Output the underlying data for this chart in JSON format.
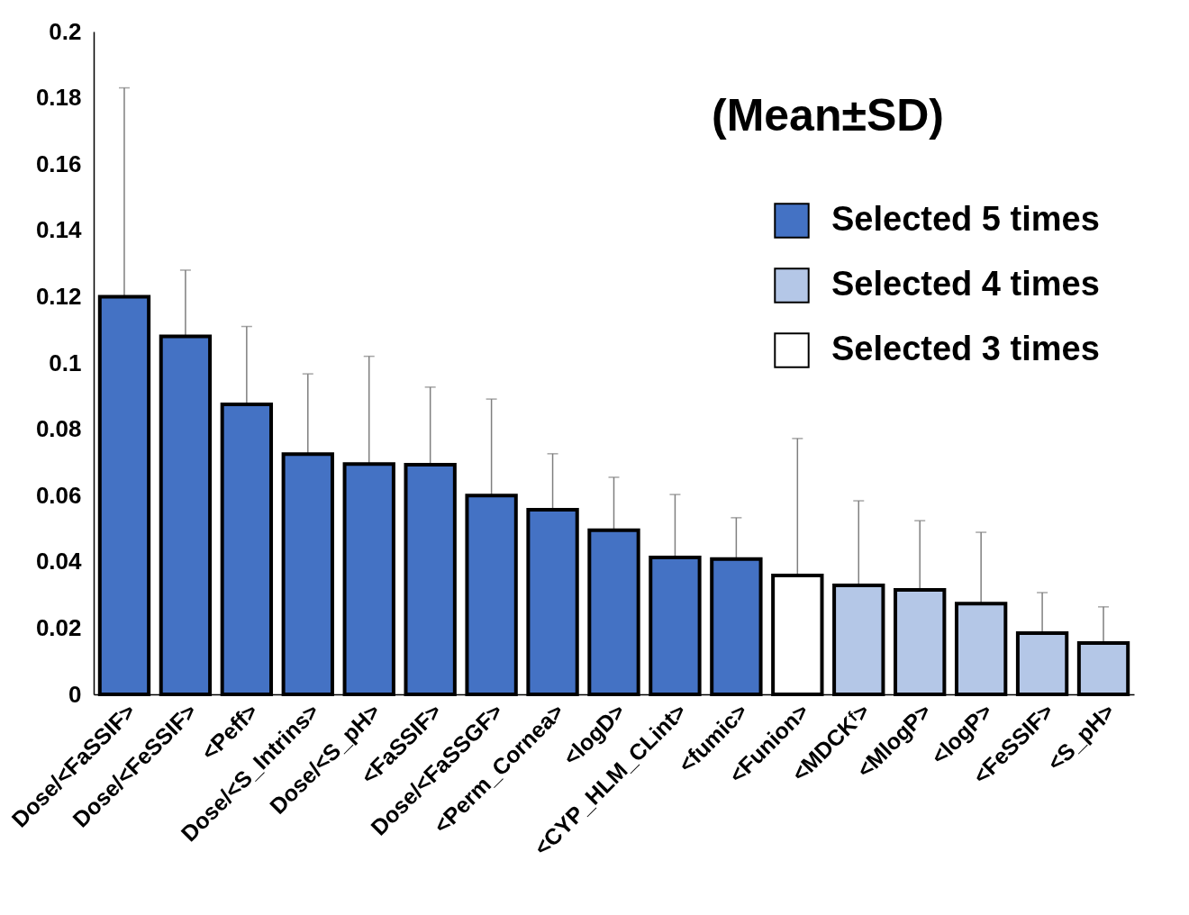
{
  "chart_data": {
    "type": "bar",
    "categories": [
      "Dose/<FaSSIF>",
      "Dose/<FeSSIF>",
      "<Peff>",
      "Dose/<S_Intrins>",
      "Dose/<S_pH>",
      "<FaSSIF>",
      "Dose/<FaSSGF>",
      "<Perm_Cornea>",
      "<logD>",
      "<CYP_HLM_CLint>",
      "<fumic>",
      "<Funion>",
      "<MDCKᶠ>",
      "<MlogP>",
      "<logP>",
      "<FeSSIF>",
      "<S_pH>"
    ],
    "series": [
      {
        "name": "Selected 5 times",
        "color": "#4472c4",
        "values": [
          0.12,
          0.108,
          0.0875,
          0.0725,
          0.0695,
          0.0693,
          0.06,
          0.0557,
          0.0495,
          0.0413,
          0.0408,
          null,
          null,
          null,
          null,
          null,
          null
        ],
        "errors": [
          [
            0.12,
            0.183
          ],
          [
            0.108,
            0.128
          ],
          [
            0.0875,
            0.111
          ],
          [
            0.0725,
            0.0967
          ],
          [
            0.0695,
            0.102
          ],
          [
            0.0693,
            0.0927
          ],
          [
            0.06,
            0.0891
          ],
          [
            0.0557,
            0.0726
          ],
          [
            0.0495,
            0.0655
          ],
          [
            0.0413,
            0.0603
          ],
          [
            0.0408,
            0.0533
          ],
          null,
          null,
          null,
          null,
          null,
          null
        ]
      },
      {
        "name": "Selected 4 times",
        "color": "#b4c7e7",
        "values": [
          null,
          null,
          null,
          null,
          null,
          null,
          null,
          null,
          null,
          null,
          null,
          null,
          0.0329,
          0.0315,
          0.0274,
          0.0185,
          0.0155
        ],
        "errors": [
          null,
          null,
          null,
          null,
          null,
          null,
          null,
          null,
          null,
          null,
          null,
          null,
          [
            0.0329,
            0.0584
          ],
          [
            0.0315,
            0.0524
          ],
          [
            0.0274,
            0.0489
          ],
          [
            0.0185,
            0.0307
          ],
          [
            0.0155,
            0.0264
          ]
        ]
      },
      {
        "name": "Selected 3 times",
        "color": "#ffffff",
        "values": [
          null,
          null,
          null,
          null,
          null,
          null,
          null,
          null,
          null,
          null,
          null,
          0.0359,
          null,
          null,
          null,
          null,
          null
        ],
        "errors": [
          null,
          null,
          null,
          null,
          null,
          null,
          null,
          null,
          null,
          null,
          null,
          [
            0.0359,
            0.0772
          ],
          null,
          null,
          null,
          null,
          null
        ]
      }
    ],
    "ylim": [
      0,
      0.2
    ],
    "yticks": [
      0,
      0.02,
      0.04,
      0.06,
      0.08,
      0.1,
      0.12,
      0.14,
      0.16,
      0.18,
      0.2
    ],
    "grid": false,
    "legend": "top right",
    "annotations": [
      "(Mean±SD)"
    ]
  }
}
